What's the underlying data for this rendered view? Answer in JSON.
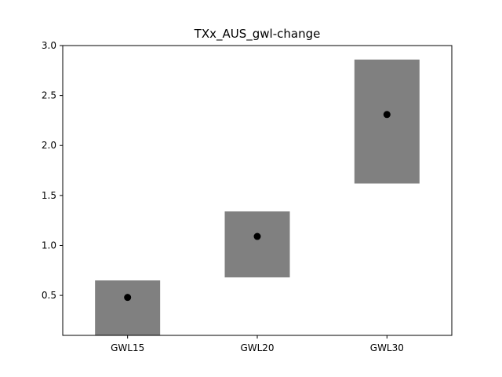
{
  "chart_data": {
    "type": "range-bar",
    "title": "TXx_AUS_gwl-change",
    "xlabel": "",
    "ylabel": "",
    "categories": [
      "GWL15",
      "GWL20",
      "GWL30"
    ],
    "ranges": [
      {
        "low": 0.08,
        "high": 0.65
      },
      {
        "low": 0.68,
        "high": 1.34
      },
      {
        "low": 1.62,
        "high": 2.86
      }
    ],
    "points": [
      0.48,
      1.09,
      2.31
    ],
    "ylim": [
      0.1,
      3.0
    ],
    "yticks": [
      0.5,
      1.0,
      1.5,
      2.0,
      2.5,
      3.0
    ],
    "ytick_labels": [
      "0.5",
      "1.0",
      "1.5",
      "2.0",
      "2.5",
      "3.0"
    ],
    "bar_color": "#808080",
    "point_color": "#000000",
    "grid": false,
    "legend": "none"
  }
}
